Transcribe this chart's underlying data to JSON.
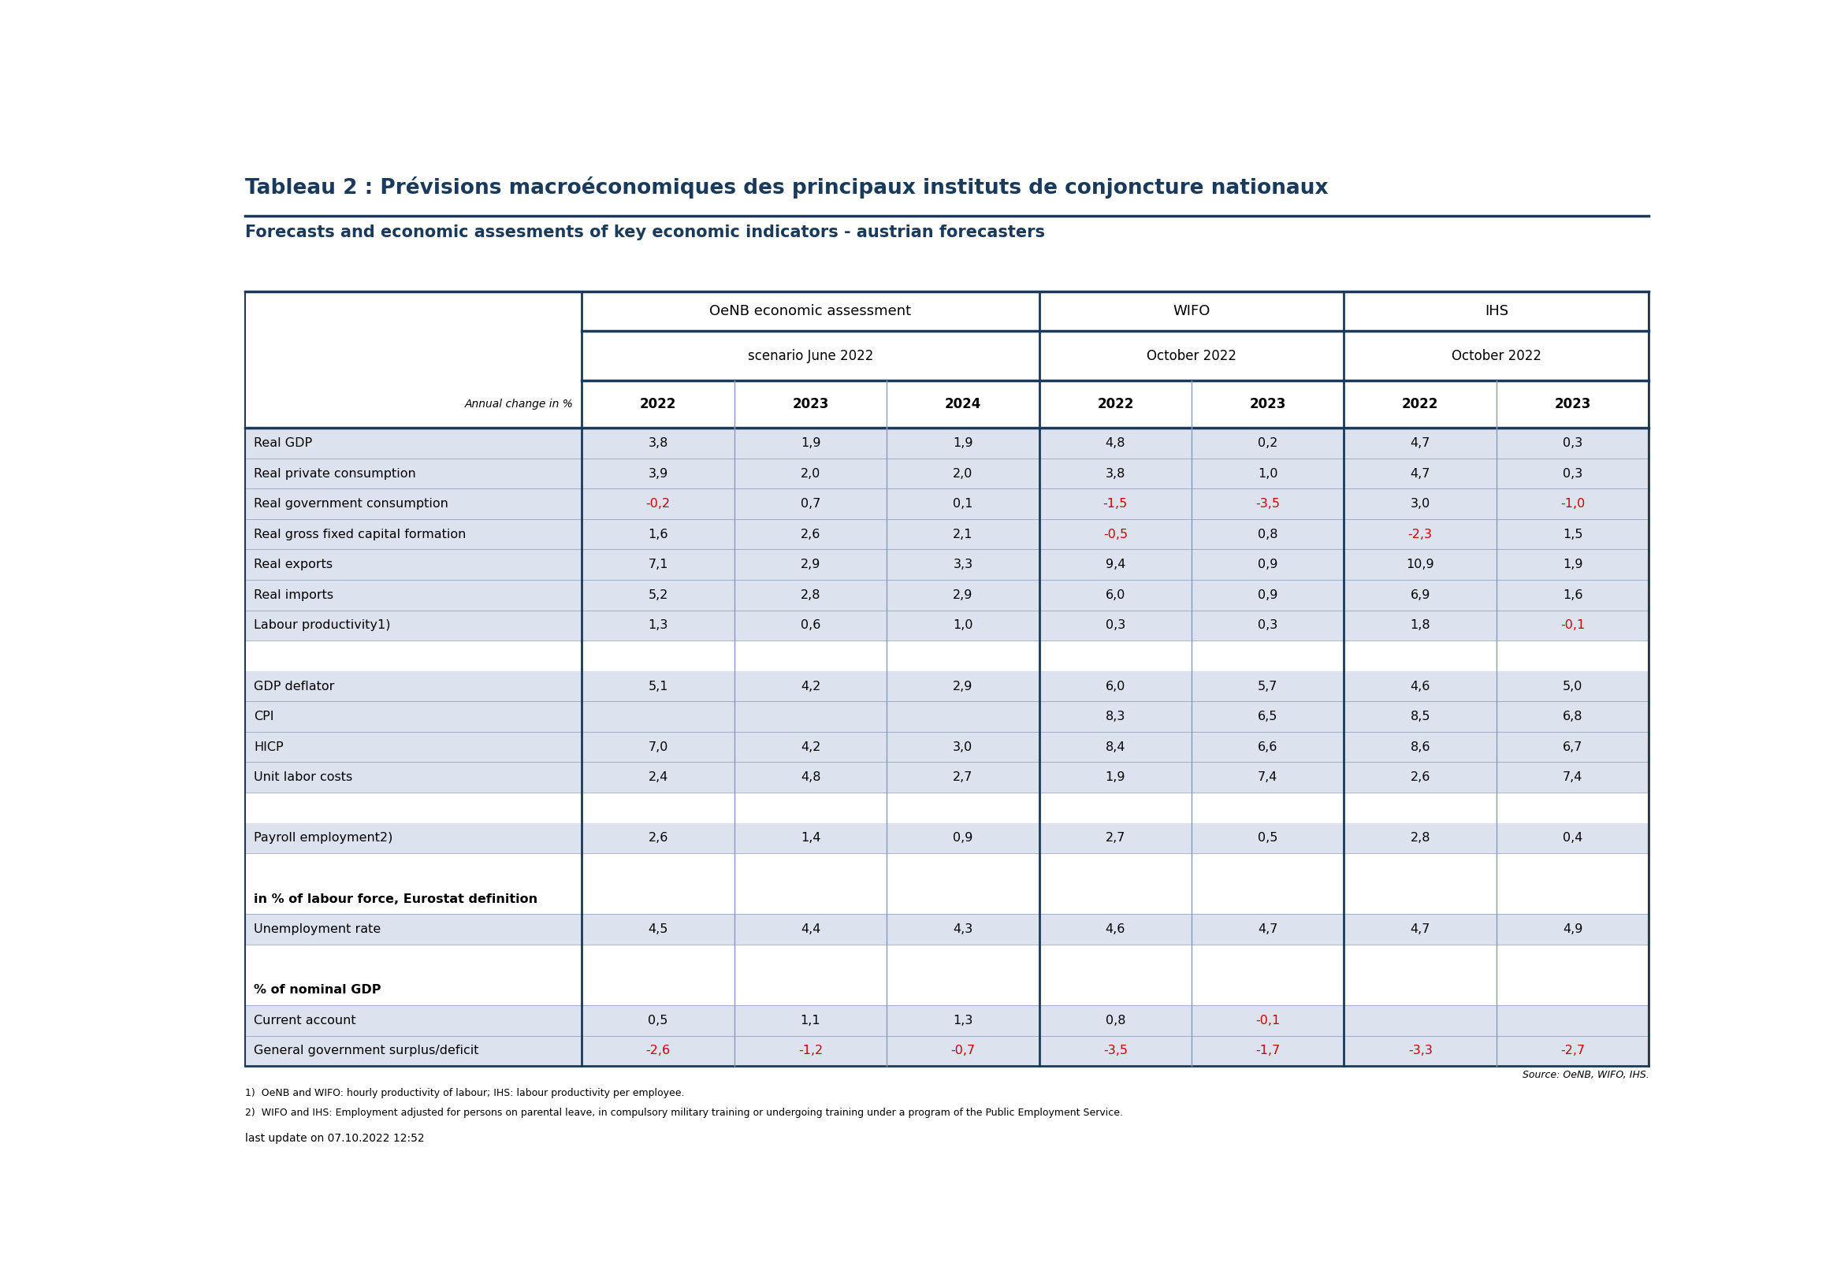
{
  "title": "Tableau 2 : Prévisions macroéconomiques des principaux instituts de conjoncture nationaux",
  "subtitle": "Forecasts and economic assesments of key economic indicators - austrian forecasters",
  "annual_change_label": "Annual change in %",
  "rows": [
    {
      "label": "Real GDP",
      "oenb": [
        "3,8",
        "1,9",
        "1,9"
      ],
      "wifo": [
        "4,8",
        "0,2"
      ],
      "ihs": [
        "4,7",
        "0,3"
      ],
      "group": "data"
    },
    {
      "label": "Real private consumption",
      "oenb": [
        "3,9",
        "2,0",
        "2,0"
      ],
      "wifo": [
        "3,8",
        "1,0"
      ],
      "ihs": [
        "4,7",
        "0,3"
      ],
      "group": "data"
    },
    {
      "label": "Real government consumption",
      "oenb": [
        "-0,2",
        "0,7",
        "0,1"
      ],
      "wifo": [
        "-1,5",
        "-3,5"
      ],
      "ihs": [
        "3,0",
        "-1,0"
      ],
      "group": "data"
    },
    {
      "label": "Real gross fixed capital formation",
      "oenb": [
        "1,6",
        "2,6",
        "2,1"
      ],
      "wifo": [
        "-0,5",
        "0,8"
      ],
      "ihs": [
        "-2,3",
        "1,5"
      ],
      "group": "data"
    },
    {
      "label": "Real exports",
      "oenb": [
        "7,1",
        "2,9",
        "3,3"
      ],
      "wifo": [
        "9,4",
        "0,9"
      ],
      "ihs": [
        "10,9",
        "1,9"
      ],
      "group": "data"
    },
    {
      "label": "Real imports",
      "oenb": [
        "5,2",
        "2,8",
        "2,9"
      ],
      "wifo": [
        "6,0",
        "0,9"
      ],
      "ihs": [
        "6,9",
        "1,6"
      ],
      "group": "data"
    },
    {
      "label": "Labour productivity1)",
      "oenb": [
        "1,3",
        "0,6",
        "1,0"
      ],
      "wifo": [
        "0,3",
        "0,3"
      ],
      "ihs": [
        "1,8",
        "-0,1"
      ],
      "group": "data"
    },
    {
      "label": "",
      "oenb": [
        "",
        "",
        ""
      ],
      "wifo": [
        "",
        ""
      ],
      "ihs": [
        "",
        ""
      ],
      "group": "sep"
    },
    {
      "label": "GDP deflator",
      "oenb": [
        "5,1",
        "4,2",
        "2,9"
      ],
      "wifo": [
        "6,0",
        "5,7"
      ],
      "ihs": [
        "4,6",
        "5,0"
      ],
      "group": "data"
    },
    {
      "label": "CPI",
      "oenb": [
        "",
        "",
        ""
      ],
      "wifo": [
        "8,3",
        "6,5"
      ],
      "ihs": [
        "8,5",
        "6,8"
      ],
      "group": "data"
    },
    {
      "label": "HICP",
      "oenb": [
        "7,0",
        "4,2",
        "3,0"
      ],
      "wifo": [
        "8,4",
        "6,6"
      ],
      "ihs": [
        "8,6",
        "6,7"
      ],
      "group": "data"
    },
    {
      "label": "Unit labor costs",
      "oenb": [
        "2,4",
        "4,8",
        "2,7"
      ],
      "wifo": [
        "1,9",
        "7,4"
      ],
      "ihs": [
        "2,6",
        "7,4"
      ],
      "group": "data"
    },
    {
      "label": "",
      "oenb": [
        "",
        "",
        ""
      ],
      "wifo": [
        "",
        ""
      ],
      "ihs": [
        "",
        ""
      ],
      "group": "sep"
    },
    {
      "label": "Payroll employment2)",
      "oenb": [
        "2,6",
        "1,4",
        "0,9"
      ],
      "wifo": [
        "2,7",
        "0,5"
      ],
      "ihs": [
        "2,8",
        "0,4"
      ],
      "group": "data"
    },
    {
      "label": "",
      "oenb": [
        "",
        "",
        ""
      ],
      "wifo": [
        "",
        ""
      ],
      "ihs": [
        "",
        ""
      ],
      "group": "sep"
    },
    {
      "label": "in % of labour force, Eurostat definition",
      "oenb": [
        "",
        "",
        ""
      ],
      "wifo": [
        "",
        ""
      ],
      "ihs": [
        "",
        ""
      ],
      "group": "header"
    },
    {
      "label": "Unemployment rate",
      "oenb": [
        "4,5",
        "4,4",
        "4,3"
      ],
      "wifo": [
        "4,6",
        "4,7"
      ],
      "ihs": [
        "4,7",
        "4,9"
      ],
      "group": "data"
    },
    {
      "label": "",
      "oenb": [
        "",
        "",
        ""
      ],
      "wifo": [
        "",
        ""
      ],
      "ihs": [
        "",
        ""
      ],
      "group": "sep"
    },
    {
      "label": "% of nominal GDP",
      "oenb": [
        "",
        "",
        ""
      ],
      "wifo": [
        "",
        ""
      ],
      "ihs": [
        "",
        ""
      ],
      "group": "header"
    },
    {
      "label": "Current account",
      "oenb": [
        "0,5",
        "1,1",
        "1,3"
      ],
      "wifo": [
        "0,8",
        "-0,1"
      ],
      "ihs": [
        "",
        ""
      ],
      "group": "data"
    },
    {
      "label": "General government surplus/deficit",
      "oenb": [
        "-2,6",
        "-1,2",
        "-0,7"
      ],
      "wifo": [
        "-3,5",
        "-1,7"
      ],
      "ihs": [
        "-3,3",
        "-2,7"
      ],
      "group": "data"
    }
  ],
  "footnotes": [
    "1)  OeNB and WIFO: hourly productivity of labour; IHS: labour productivity per employee.",
    "2)  WIFO and IHS: Employment adjusted for persons on parental leave, in compulsory military training or undergoing training under a program of the Public Employment Service."
  ],
  "last_update": "last update on 07.10.2022 12:52",
  "source": "Source: OeNB, WIFO, IHS.",
  "colors": {
    "title": "#1a3a5c",
    "subtitle": "#1a3a5c",
    "row_bg_light": "#dde3ee",
    "row_bg_white": "#ffffff",
    "negative_text": "#cc0000",
    "normal_text": "#000000",
    "border_dark": "#1a3a5c",
    "border_light": "#8899bb"
  }
}
